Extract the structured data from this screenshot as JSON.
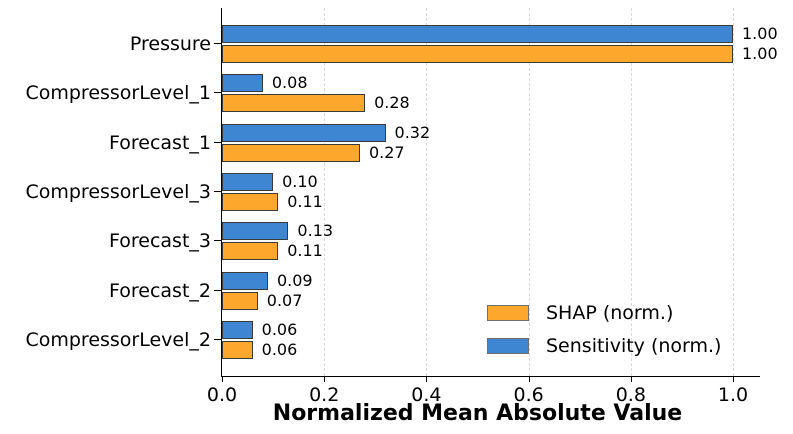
{
  "figure": {
    "background": "#ffffff"
  },
  "chart_data": {
    "type": "bar",
    "orientation": "horizontal",
    "title": "",
    "xlabel": "Normalized Mean Absolute Value",
    "ylabel": "",
    "categories": [
      "Pressure",
      "CompressorLevel_1",
      "Forecast_1",
      "CompressorLevel_3",
      "Forecast_3",
      "Forecast_2",
      "CompressorLevel_2"
    ],
    "series": [
      {
        "name": "SHAP (norm.)",
        "color": "#FDA72D",
        "values": [
          1.0,
          0.28,
          0.27,
          0.11,
          0.11,
          0.07,
          0.06
        ]
      },
      {
        "name": "Sensitivity (norm.)",
        "color": "#3E86D2",
        "values": [
          1.0,
          0.08,
          0.32,
          0.1,
          0.13,
          0.09,
          0.06
        ]
      }
    ],
    "bar_order_top_to_bottom": [
      "Sensitivity (norm.)",
      "SHAP (norm.)"
    ],
    "value_labels": true,
    "value_label_format": "2-decimals",
    "x_ticks": [
      0.0,
      0.2,
      0.4,
      0.6,
      0.8,
      1.0
    ],
    "x_tick_labels": [
      "0.0",
      "0.2",
      "0.4",
      "0.6",
      "0.8",
      "1.0"
    ],
    "xlim": [
      0,
      1.053
    ],
    "grid": "vertical-dashed",
    "grid_color": "#d9d9d9",
    "bar_edge_color": "#3a3a3a",
    "legend_position": "lower-right",
    "legend_entries": [
      {
        "label": "SHAP (norm.)",
        "color": "#FDA72D"
      },
      {
        "label": "Sensitivity (norm.)",
        "color": "#3E86D2"
      }
    ],
    "text_color": "#000000"
  }
}
